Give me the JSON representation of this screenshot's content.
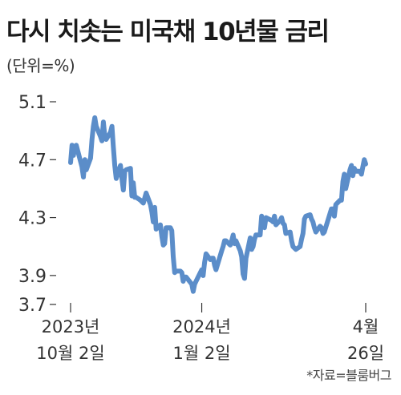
{
  "header": {
    "title": "다시 치솟는 미국채 10년물 금리",
    "subtitle": "(단위=%)"
  },
  "source": "*자료=블룸버그",
  "chart_data": {
    "type": "line",
    "title": "다시 치솟는 미국채 10년물 금리",
    "ylabel": "(단위=%)",
    "ylim": [
      3.7,
      5.1
    ],
    "yticks": [
      5.1,
      4.7,
      4.3,
      3.9,
      3.7
    ],
    "x_ticks": [
      {
        "line1": "2023년",
        "line2": "10월 2일"
      },
      {
        "line1": "2024년",
        "line2": "1월 2일"
      },
      {
        "line1": "4월",
        "line2": "26일"
      }
    ],
    "series_color": "#5b8dc9",
    "series": [
      {
        "x": [
          "2023-10-02",
          "2023-10-03",
          "2023-10-04",
          "2023-10-05",
          "2023-10-06",
          "2023-10-10",
          "2023-10-11",
          "2023-10-12",
          "2023-10-13",
          "2023-10-16",
          "2023-10-17",
          "2023-10-18",
          "2023-10-19",
          "2023-10-20",
          "2023-10-23",
          "2023-10-24",
          "2023-10-25",
          "2023-10-26",
          "2023-10-27",
          "2023-10-30",
          "2023-10-31",
          "2023-11-01",
          "2023-11-02",
          "2023-11-03",
          "2023-11-06",
          "2023-11-07",
          "2023-11-08",
          "2023-11-09",
          "2023-11-10",
          "2023-11-13",
          "2023-11-14",
          "2023-11-15",
          "2023-11-16",
          "2023-11-17",
          "2023-11-20",
          "2023-11-21",
          "2023-11-22",
          "2023-11-24",
          "2023-11-27",
          "2023-11-28",
          "2023-11-29",
          "2023-11-30",
          "2023-12-01",
          "2023-12-04",
          "2023-12-05",
          "2023-12-06",
          "2023-12-07",
          "2023-12-08",
          "2023-12-11",
          "2023-12-12",
          "2023-12-13",
          "2023-12-14",
          "2023-12-15",
          "2023-12-18",
          "2023-12-19",
          "2023-12-20",
          "2023-12-21",
          "2023-12-22",
          "2023-12-26",
          "2023-12-27",
          "2023-12-28",
          "2023-12-29",
          "2024-01-02",
          "2024-01-03",
          "2024-01-04",
          "2024-01-05",
          "2024-01-08",
          "2024-01-09",
          "2024-01-10",
          "2024-01-11",
          "2024-01-12",
          "2024-01-16",
          "2024-01-17",
          "2024-01-18",
          "2024-01-19",
          "2024-01-22",
          "2024-01-23",
          "2024-01-24",
          "2024-01-25",
          "2024-01-26",
          "2024-01-29",
          "2024-01-30",
          "2024-01-31",
          "2024-02-01",
          "2024-02-02",
          "2024-02-05",
          "2024-02-06",
          "2024-02-07",
          "2024-02-08",
          "2024-02-09",
          "2024-02-12",
          "2024-02-13",
          "2024-02-14",
          "2024-02-15",
          "2024-02-16",
          "2024-02-20",
          "2024-02-21",
          "2024-02-22",
          "2024-02-23",
          "2024-02-26",
          "2024-02-27",
          "2024-02-28",
          "2024-02-29",
          "2024-03-01",
          "2024-03-04",
          "2024-03-05",
          "2024-03-06",
          "2024-03-07",
          "2024-03-08",
          "2024-03-11",
          "2024-03-12",
          "2024-03-13",
          "2024-03-14",
          "2024-03-15",
          "2024-03-18",
          "2024-03-19",
          "2024-03-20",
          "2024-03-21",
          "2024-03-22",
          "2024-03-25",
          "2024-03-26",
          "2024-03-27",
          "2024-03-28",
          "2024-04-01",
          "2024-04-02",
          "2024-04-03",
          "2024-04-04",
          "2024-04-05",
          "2024-04-08",
          "2024-04-09",
          "2024-04-10",
          "2024-04-11",
          "2024-04-12",
          "2024-04-15",
          "2024-04-16",
          "2024-04-17",
          "2024-04-18",
          "2024-04-19",
          "2024-04-22",
          "2024-04-23",
          "2024-04-24",
          "2024-04-25",
          "2024-04-26"
        ],
        "values": [
          4.68,
          4.8,
          4.73,
          4.79,
          4.8,
          4.65,
          4.58,
          4.7,
          4.63,
          4.71,
          4.84,
          4.93,
          4.99,
          4.93,
          4.86,
          4.83,
          4.96,
          4.86,
          4.84,
          4.89,
          4.93,
          4.79,
          4.66,
          4.57,
          4.66,
          4.57,
          4.49,
          4.62,
          4.63,
          4.64,
          4.45,
          4.54,
          4.44,
          4.44,
          4.42,
          4.41,
          4.4,
          4.47,
          4.39,
          4.34,
          4.27,
          4.37,
          4.22,
          4.25,
          4.17,
          4.11,
          4.12,
          4.23,
          4.23,
          4.21,
          4.03,
          3.92,
          3.93,
          3.93,
          3.92,
          3.86,
          3.89,
          3.89,
          3.84,
          3.79,
          3.84,
          3.86,
          3.94,
          3.9,
          3.99,
          4.05,
          4.01,
          4.02,
          4.02,
          3.97,
          3.94,
          4.07,
          4.1,
          4.14,
          4.14,
          4.11,
          4.14,
          4.18,
          4.12,
          4.14,
          4.07,
          4.03,
          3.91,
          3.88,
          4.02,
          4.16,
          4.08,
          4.1,
          4.15,
          4.18,
          4.18,
          4.31,
          4.25,
          4.23,
          4.3,
          4.28,
          4.27,
          4.31,
          4.25,
          4.28,
          4.3,
          4.26,
          4.25,
          4.19,
          4.2,
          4.14,
          4.1,
          4.09,
          4.08,
          4.1,
          4.15,
          4.19,
          4.29,
          4.31,
          4.32,
          4.29,
          4.27,
          4.23,
          4.2,
          4.24,
          4.23,
          4.19,
          4.2,
          4.33,
          4.36,
          4.36,
          4.31,
          4.39,
          4.42,
          4.42,
          4.55,
          4.6,
          4.5,
          4.63,
          4.66,
          4.59,
          4.64,
          4.62,
          4.62,
          4.6,
          4.65,
          4.7,
          4.67
        ]
      }
    ]
  }
}
